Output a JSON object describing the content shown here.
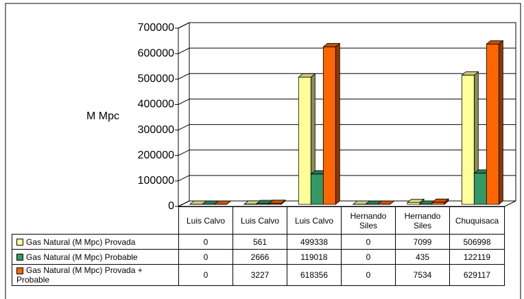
{
  "chart_data": {
    "type": "bar3d",
    "y_label": "M Mpc",
    "categories": [
      "Luis Calvo",
      "Luis Calvo",
      "Luis Calvo",
      "Hernando Siles",
      "Hernando Siles",
      "Chuquisaca"
    ],
    "series": [
      {
        "name": "Gas Natural (M Mpc) Provada",
        "color": "#ffff99",
        "values": [
          0,
          561,
          499338,
          0,
          7099,
          506998
        ]
      },
      {
        "name": "Gas Natural (M Mpc) Probable",
        "color": "#339966",
        "values": [
          0,
          2666,
          119018,
          0,
          435,
          122119
        ]
      },
      {
        "name": "Gas Natural (M Mpc) Provada + Probable",
        "color": "#ff6600",
        "values": [
          0,
          3227,
          618356,
          0,
          7534,
          629117
        ]
      }
    ],
    "ylim": [
      0,
      700000
    ],
    "yticks": [
      0,
      100000,
      200000,
      300000,
      400000,
      500000,
      600000,
      700000
    ],
    "grid": true
  }
}
